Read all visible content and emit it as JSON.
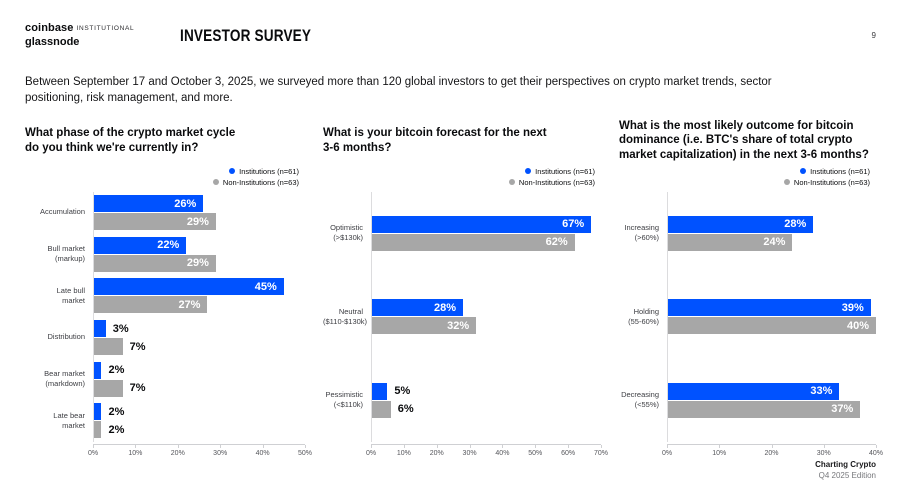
{
  "header": {
    "brand_primary": "coinbase",
    "brand_suffix": "INSTITUTIONAL",
    "brand_secondary": "glassnode",
    "title": "INVESTOR SURVEY",
    "page_number": "9"
  },
  "intro": "Between September 17 and October 3, 2025, we surveyed more than 120 global investors to get their perspectives on crypto market trends, sector\npositioning, risk management, and more.",
  "legend": {
    "institutions": "Institutions (n=61)",
    "non_institutions": "Non-Institutions (n=63)"
  },
  "colors": {
    "institutions": "#0052FF",
    "non_institutions": "#A7A7A7",
    "value_label_inside": "#FFFFFF",
    "value_label_outside": "#0A0B0D"
  },
  "chart_data": [
    {
      "type": "bar",
      "orientation": "horizontal",
      "title": "What phase of the crypto market cycle\ndo you think we're currently in?",
      "categories": [
        "Accumulation",
        "Bull market\n(markup)",
        "Late bull\nmarket",
        "Distribution",
        "Bear market\n(markdown)",
        "Late bear\nmarket"
      ],
      "series": [
        {
          "name": "Institutions (n=61)",
          "values": [
            26,
            22,
            45,
            3,
            2,
            2
          ]
        },
        {
          "name": "Non-Institutions (n=63)",
          "values": [
            29,
            29,
            27,
            7,
            7,
            2
          ]
        }
      ],
      "xlim": [
        0,
        50
      ],
      "ticks": [
        "0%",
        "10%",
        "20%",
        "30%",
        "40%",
        "50%"
      ],
      "grid": false,
      "legend_position": "top-right"
    },
    {
      "type": "bar",
      "orientation": "horizontal",
      "title": "What is your bitcoin forecast for the next\n3-6 months?",
      "categories": [
        "Optimistic\n(>$130k)",
        "Neutral\n($110-$130k)",
        "Pessimistic\n(<$110k)"
      ],
      "series": [
        {
          "name": "Institutions (n=61)",
          "values": [
            67,
            28,
            5
          ]
        },
        {
          "name": "Non-Institutions (n=63)",
          "values": [
            62,
            32,
            6
          ]
        }
      ],
      "xlim": [
        0,
        70
      ],
      "ticks": [
        "0%",
        "10%",
        "20%",
        "30%",
        "40%",
        "50%",
        "60%",
        "70%"
      ],
      "grid": false,
      "legend_position": "top-right"
    },
    {
      "type": "bar",
      "orientation": "horizontal",
      "title": "What is the most likely outcome for bitcoin\ndominance (i.e. BTC's share of total crypto\nmarket capitalization) in the next 3-6 months?",
      "categories": [
        "Increasing\n(>60%)",
        "Holding\n(55-60%)",
        "Decreasing\n(<55%)"
      ],
      "series": [
        {
          "name": "Institutions (n=61)",
          "values": [
            28,
            39,
            33
          ]
        },
        {
          "name": "Non-Institutions (n=63)",
          "values": [
            24,
            40,
            37
          ]
        }
      ],
      "xlim": [
        0,
        40
      ],
      "ticks": [
        "0%",
        "10%",
        "20%",
        "30%",
        "40%"
      ],
      "grid": false,
      "legend_position": "top-right"
    }
  ],
  "footer": {
    "line1": "Charting Crypto",
    "line2": "Q4 2025 Edition"
  }
}
